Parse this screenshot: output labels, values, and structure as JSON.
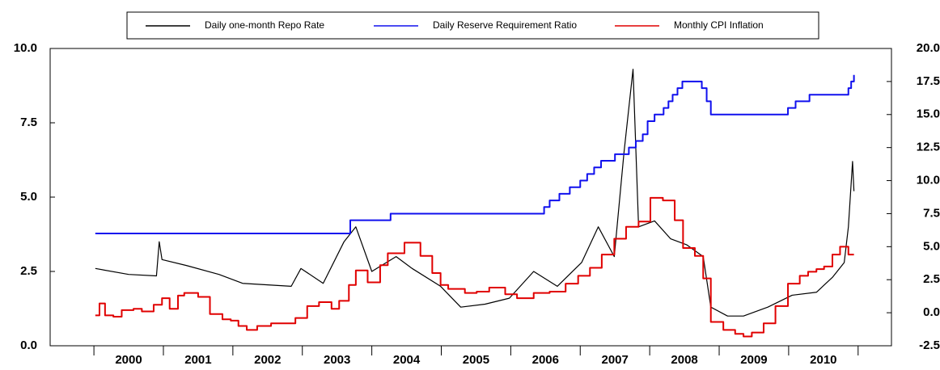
{
  "chart_data": {
    "type": "line",
    "legend": "top",
    "xlim": [
      1999.37,
      2011.48
    ],
    "xticks": [
      {
        "value": 2000.5,
        "label": "2000"
      },
      {
        "value": 2001.5,
        "label": "2001"
      },
      {
        "value": 2002.5,
        "label": "2002"
      },
      {
        "value": 2003.5,
        "label": "2003"
      },
      {
        "value": 2004.5,
        "label": "2004"
      },
      {
        "value": 2005.5,
        "label": "2005"
      },
      {
        "value": 2006.5,
        "label": "2006"
      },
      {
        "value": 2007.5,
        "label": "2007"
      },
      {
        "value": 2008.5,
        "label": "2008"
      },
      {
        "value": 2009.5,
        "label": "2009"
      },
      {
        "value": 2010.5,
        "label": "2010"
      }
    ],
    "ylim": [
      0,
      10
    ],
    "yticks": [
      {
        "value": 0,
        "label": "0.0"
      },
      {
        "value": 2.5,
        "label": "2.5"
      },
      {
        "value": 5,
        "label": "5.0"
      },
      {
        "value": 7.5,
        "label": "7.5"
      },
      {
        "value": 10,
        "label": "10.0"
      }
    ],
    "y2lim": [
      -2.5,
      20
    ],
    "y2ticks": [
      -2.5,
      {
        "value": 0,
        "label": "0.0"
      },
      2.5,
      {
        "value": 5,
        "label": "5.0"
      },
      7.5,
      {
        "value": 10,
        "label": "10.0"
      },
      12.5,
      {
        "value": 15,
        "label": "15.0"
      },
      17.5,
      {
        "value": 20,
        "label": "20.0"
      }
    ],
    "series": [
      {
        "name": "Daily one-month Repo Rate",
        "color": "#000000",
        "x": [
          2000.02,
          2000.5,
          2000.9,
          2000.94,
          2000.98,
          2001.33,
          2001.8,
          2002.14,
          2002.84,
          2002.98,
          2003.3,
          2003.6,
          2003.77,
          2004.0,
          2004.35,
          2004.58,
          2004.99,
          2005.28,
          2005.63,
          2005.98,
          2006.33,
          2006.67,
          2007.02,
          2007.26,
          2007.49,
          2007.63,
          2007.76,
          2007.84,
          2008.07,
          2008.3,
          2008.53,
          2008.77,
          2008.88,
          2009.12,
          2009.35,
          2009.7,
          2010.05,
          2010.4,
          2010.63,
          2010.8,
          2010.86,
          2010.92,
          2010.94
        ],
        "values": [
          2.6,
          2.4,
          2.35,
          3.5,
          2.9,
          2.7,
          2.4,
          2.1,
          2.0,
          2.6,
          2.1,
          3.5,
          4.0,
          2.5,
          3.0,
          2.6,
          2.0,
          1.3,
          1.4,
          1.6,
          2.5,
          2.0,
          2.8,
          4.0,
          3.0,
          6.5,
          9.3,
          4.0,
          4.2,
          3.6,
          3.4,
          3.0,
          1.3,
          1.0,
          1.0,
          1.3,
          1.7,
          1.8,
          2.3,
          2.8,
          4.0,
          6.2,
          5.2
        ]
      },
      {
        "name": "Daily Reserve Requirement Ratio",
        "color": "#1010ee",
        "axis": "y2",
        "step": true,
        "x": [
          2000.02,
          2003.69,
          2004.27,
          2006.48,
          2006.56,
          2006.7,
          2006.85,
          2007.0,
          2007.1,
          2007.2,
          2007.3,
          2007.5,
          2007.7,
          2007.8,
          2007.9,
          2007.97,
          2008.07,
          2008.2,
          2008.27,
          2008.33,
          2008.4,
          2008.47,
          2008.75,
          2008.82,
          2008.88,
          2009.99,
          2010.1,
          2010.3,
          2010.86,
          2010.9,
          2010.94
        ],
        "values": [
          6.0,
          7.0,
          7.5,
          8.0,
          8.5,
          9.0,
          9.5,
          10.0,
          10.5,
          11.0,
          11.5,
          12.0,
          12.5,
          13.0,
          13.5,
          14.5,
          15.0,
          15.5,
          16.0,
          16.5,
          17.0,
          17.5,
          17.0,
          16.0,
          15.0,
          15.5,
          16.0,
          16.5,
          17.0,
          17.5,
          18.0
        ]
      },
      {
        "name": "Monthly CPI Inflation",
        "color": "#e00000",
        "axis": "y2",
        "step": true,
        "x": [
          2000.02,
          2000.08,
          2000.16,
          2000.28,
          2000.4,
          2000.57,
          2000.69,
          2000.86,
          2000.98,
          2001.09,
          2001.21,
          2001.3,
          2001.5,
          2001.67,
          2001.85,
          2001.97,
          2002.08,
          2002.2,
          2002.35,
          2002.55,
          2002.72,
          2002.9,
          2003.07,
          2003.24,
          2003.42,
          2003.53,
          2003.67,
          2003.77,
          2003.94,
          2004.12,
          2004.23,
          2004.47,
          2004.7,
          2004.87,
          2004.99,
          2005.1,
          2005.34,
          2005.51,
          2005.69,
          2005.92,
          2006.09,
          2006.33,
          2006.56,
          2006.79,
          2006.97,
          2007.14,
          2007.31,
          2007.49,
          2007.66,
          2007.84,
          2008.01,
          2008.19,
          2008.36,
          2008.48,
          2008.65,
          2008.77,
          2008.88,
          2009.06,
          2009.23,
          2009.35,
          2009.47,
          2009.64,
          2009.81,
          2009.99,
          2010.16,
          2010.28,
          2010.4,
          2010.51,
          2010.63,
          2010.74,
          2010.86,
          2010.94
        ],
        "values": [
          -0.2,
          0.7,
          -0.2,
          -0.3,
          0.2,
          0.3,
          0.1,
          0.6,
          1.1,
          0.3,
          1.3,
          1.5,
          1.2,
          -0.1,
          -0.5,
          -0.6,
          -1.0,
          -1.3,
          -1.0,
          -0.8,
          -0.8,
          -0.4,
          0.5,
          0.8,
          0.3,
          0.9,
          2.1,
          3.2,
          2.3,
          3.6,
          4.5,
          5.3,
          4.3,
          3.0,
          2.1,
          1.8,
          1.5,
          1.6,
          1.9,
          1.4,
          1.1,
          1.5,
          1.6,
          2.2,
          2.8,
          3.4,
          4.4,
          5.6,
          6.5,
          6.9,
          8.7,
          8.5,
          7.0,
          4.9,
          4.3,
          2.6,
          -0.7,
          -1.3,
          -1.6,
          -1.8,
          -1.5,
          -0.8,
          0.5,
          2.2,
          2.8,
          3.1,
          3.3,
          3.5,
          4.4,
          5.0,
          4.4,
          4.4
        ]
      }
    ]
  }
}
